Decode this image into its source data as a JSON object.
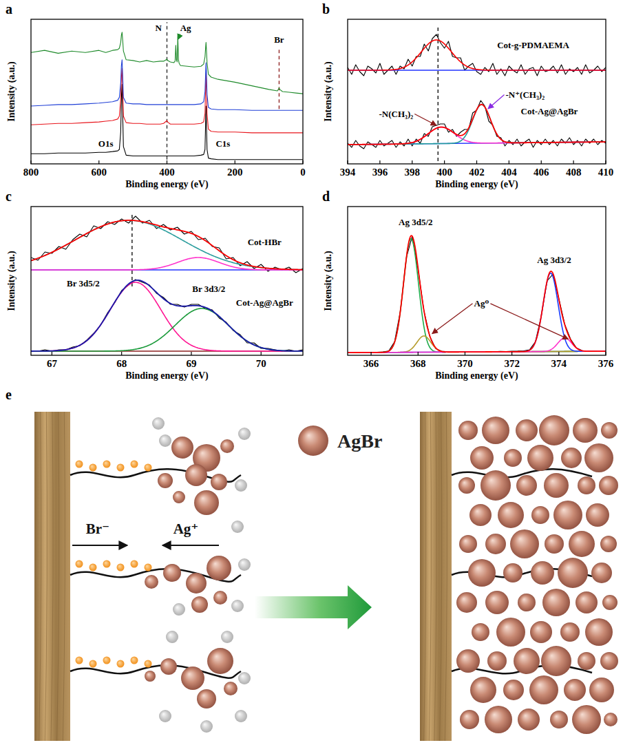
{
  "chart_data": [
    {
      "panel": "a",
      "type": "line",
      "xlabel": "Binding energy (eV)",
      "ylabel": "Intensity (a.u.)",
      "xlim": [
        800,
        0
      ],
      "xticks": [
        800,
        600,
        400,
        200,
        0
      ],
      "ylim": [
        0,
        100
      ],
      "tick_labels": "x",
      "x": [
        800,
        760,
        720,
        680,
        640,
        600,
        580,
        560,
        545,
        540,
        536,
        534,
        532,
        530,
        528,
        520,
        500,
        480,
        460,
        440,
        420,
        410,
        402,
        400,
        398,
        390,
        380,
        376,
        374,
        372,
        370,
        368,
        366,
        364,
        360,
        340,
        320,
        300,
        292,
        288,
        286,
        285,
        284,
        282,
        278,
        270,
        250,
        200,
        150,
        100,
        75,
        70,
        68,
        60,
        40,
        20,
        0
      ],
      "series": [
        {
          "color": "#000000",
          "values": [
            7,
            7,
            7.5,
            7.5,
            7.5,
            8,
            8,
            8.5,
            9,
            10,
            22,
            46,
            55,
            32,
            12,
            6,
            5.5,
            5.5,
            5.5,
            5.5,
            5.5,
            5.5,
            5.5,
            5.5,
            5.5,
            5.5,
            5.5,
            5.5,
            5.5,
            5.5,
            5.5,
            5.5,
            5.5,
            5.5,
            5.5,
            5.5,
            5.5,
            6,
            6.5,
            10,
            30,
            40,
            30,
            10,
            4,
            3.5,
            3,
            3,
            3,
            3,
            3,
            3,
            3,
            3,
            3,
            3,
            3
          ]
        },
        {
          "color": "#e8141b",
          "values": [
            27,
            27.5,
            28,
            28,
            28.5,
            29,
            29.5,
            30,
            31,
            33,
            45,
            60,
            66,
            50,
            33,
            28.5,
            28,
            28,
            27.5,
            27.5,
            27.5,
            28,
            29.5,
            30,
            29,
            27.5,
            27.5,
            27.5,
            27.5,
            27.5,
            27.5,
            27.5,
            27.5,
            27.5,
            27.5,
            27.5,
            27.5,
            28,
            29,
            35,
            55,
            63,
            55,
            35,
            24,
            22.5,
            22,
            22,
            21.5,
            21.5,
            21.5,
            21.5,
            21.5,
            21.5,
            21.5,
            21.5,
            21.5
          ]
        },
        {
          "color": "#1f3fd6",
          "values": [
            40,
            40.5,
            41,
            41,
            41.5,
            42,
            42.5,
            43,
            44,
            46,
            56,
            68,
            72,
            60,
            46,
            42,
            41.5,
            41.5,
            41,
            41,
            41,
            41,
            41,
            41,
            41,
            41,
            41,
            41,
            41,
            41,
            41,
            41,
            41,
            41,
            41,
            41,
            41,
            41.5,
            43,
            50,
            64,
            70,
            64,
            48,
            39,
            38,
            37.5,
            37.5,
            37,
            37,
            37,
            37,
            37,
            37,
            37,
            37,
            37
          ]
        },
        {
          "color": "#1e8a2a",
          "values": [
            77,
            78.5,
            76.5,
            78,
            77,
            78.5,
            77,
            78.5,
            79,
            80,
            84,
            89,
            91,
            85,
            78,
            72,
            71.5,
            70.5,
            71.5,
            70.5,
            71,
            71,
            72,
            72.5,
            71.5,
            70.5,
            70,
            71,
            82,
            72,
            70.5,
            88,
            72,
            69.5,
            68,
            67.5,
            67,
            67.5,
            69,
            74,
            81,
            84,
            80,
            70,
            62,
            60,
            58.5,
            56.5,
            54,
            51.5,
            50.5,
            52.5,
            51.5,
            50,
            49.5,
            49,
            48.5
          ]
        }
      ],
      "vlines": [
        {
          "x": 400,
          "y": [
            3,
            98
          ],
          "color": "#222222",
          "line_style": "dashed"
        },
        {
          "x": 70,
          "y": [
            38,
            80
          ],
          "color": "#8b1a1a",
          "line_style": "dashed"
        }
      ],
      "annotations": [
        {
          "text": "N",
          "x": 425,
          "y": 92
        },
        {
          "text": "Ag",
          "x": 345,
          "y": 92,
          "color": "#1e8a2a",
          "arrow_to": [
            [
              368,
              86
            ]
          ]
        },
        {
          "text": "Br",
          "x": 70,
          "y": 84
        },
        {
          "text": "O1s",
          "x": 580,
          "y": 12
        },
        {
          "text": "C1s",
          "x": 235,
          "y": 12
        }
      ]
    },
    {
      "panel": "b",
      "type": "line",
      "xlabel": "Binding energy (eV)",
      "ylabel": "Intensity (a.u.)",
      "xlim": [
        394,
        410
      ],
      "xticks": [
        394,
        396,
        398,
        400,
        402,
        404,
        406,
        408,
        410
      ],
      "ylim": [
        0,
        105
      ],
      "tick_labels": "x",
      "x": [
        394,
        394.25,
        394.5,
        394.75,
        395,
        395.25,
        395.5,
        395.75,
        396,
        396.25,
        396.5,
        396.75,
        397,
        397.25,
        397.5,
        397.75,
        398,
        398.25,
        398.5,
        398.75,
        399,
        399.25,
        399.5,
        399.75,
        400,
        400.25,
        400.5,
        400.75,
        401,
        401.25,
        401.5,
        401.75,
        402,
        402.25,
        402.5,
        402.75,
        403,
        403.25,
        403.5,
        403.75,
        404,
        404.25,
        404.5,
        404.75,
        405,
        405.25,
        405.5,
        405.75,
        406,
        406.25,
        406.5,
        406.75,
        407,
        407.25,
        407.5,
        407.75,
        408,
        408.25,
        408.5,
        408.75,
        409,
        409.25,
        409.5,
        409.75,
        410
      ],
      "series": [
        {
          "color": "#000000",
          "values": [
            70,
            65,
            72,
            67,
            64,
            71,
            69,
            66,
            73,
            65,
            68,
            71,
            65,
            71,
            69,
            76,
            71,
            78,
            78,
            87,
            82,
            91,
            94,
            88,
            84,
            89,
            78,
            77,
            77,
            68,
            71,
            73,
            67,
            65,
            70,
            67,
            73,
            65,
            69,
            64,
            71,
            68,
            66,
            72,
            65,
            69,
            70,
            64,
            71,
            67,
            68,
            71,
            66,
            72,
            65,
            69,
            67,
            70,
            65,
            72,
            66,
            68,
            71,
            67,
            70
          ],
          "fit": {
            "baseline": [
              68,
              68
            ],
            "baseline_color": "#2233ff",
            "components": [
              {
                "center": 399.5,
                "height": 22,
                "fwhm": 2.2,
                "color": "#ff0000"
              }
            ]
          }
        },
        {
          "color": "#000000",
          "values": [
            15,
            12,
            17,
            13,
            11,
            16,
            14,
            12,
            17,
            13,
            15,
            17,
            12,
            16,
            13,
            18,
            13,
            18,
            15,
            22,
            20,
            27,
            28,
            29,
            29,
            23,
            25,
            20,
            23,
            25,
            25,
            37,
            39,
            46,
            42,
            31,
            28,
            20,
            19,
            13,
            17,
            14,
            18,
            13,
            16,
            18,
            12,
            17,
            14,
            18,
            14,
            17,
            13,
            18,
            15,
            19,
            14,
            17,
            13,
            18,
            15,
            18,
            14,
            17,
            15
          ],
          "fit": {
            "baseline": [
              14,
              16
            ],
            "baseline_color": "#2233ff",
            "total_color": "#ff0000",
            "components": [
              {
                "center": 399.8,
                "height": 12,
                "fwhm": 1.9,
                "color": "#ff33cc"
              },
              {
                "center": 402.3,
                "height": 28,
                "fwhm": 1.3,
                "color": "#1f9a9a"
              }
            ]
          }
        }
      ],
      "vlines": [
        {
          "x": 399.6,
          "y": [
            2,
            100
          ],
          "color": "#000000",
          "line_style": "dashed"
        }
      ],
      "annotations": [
        {
          "text": "Cot-g-PDMAEMA",
          "x": 405.5,
          "y": 84
        },
        {
          "text": "Cot-Ag@AgBr",
          "x": 406.5,
          "y": 36
        },
        {
          "text": "-N(CH₃)₂",
          "x": 397,
          "y": 34,
          "color": "#8b1a1a",
          "arrow_to": [
            [
              399.5,
              28
            ]
          ]
        },
        {
          "text": "-N⁺(CH₃)₂",
          "x": 405,
          "y": 48,
          "color": "#8a2be2",
          "arrow_to": [
            [
              402.7,
              40
            ]
          ]
        }
      ]
    },
    {
      "panel": "c",
      "type": "line",
      "xlabel": "Binding energy (eV)",
      "ylabel": "Intensity (a.u.)",
      "xlim": [
        66.7,
        70.6
      ],
      "xticks": [
        67,
        68,
        69,
        70
      ],
      "ylim": [
        0,
        108
      ],
      "tick_labels": "x",
      "x": [
        66.7,
        66.8,
        66.9,
        67.0,
        67.1,
        67.2,
        67.3,
        67.4,
        67.5,
        67.6,
        67.7,
        67.8,
        67.9,
        68.0,
        68.1,
        68.2,
        68.3,
        68.4,
        68.5,
        68.6,
        68.7,
        68.8,
        68.9,
        69.0,
        69.1,
        69.2,
        69.3,
        69.4,
        69.5,
        69.6,
        69.7,
        69.8,
        69.9,
        70.0,
        70.1,
        70.2,
        70.3,
        70.4,
        70.5,
        70.6
      ],
      "series": [
        {
          "color": "#000000",
          "values": [
            71,
            69,
            75,
            74,
            79,
            77,
            84,
            88,
            86,
            94,
            92,
            97,
            95,
            99,
            96,
            101,
            96,
            98,
            92,
            95,
            91,
            93,
            88,
            90,
            84,
            85,
            79,
            78,
            70,
            71,
            65,
            68,
            63,
            66,
            61,
            64,
            62,
            64,
            60,
            63
          ],
          "fit": {
            "baseline": [
              62,
              62
            ],
            "baseline_color": "#2233ff",
            "total_color": "#ff0000",
            "components": [
              {
                "center": 68.1,
                "height": 36,
                "fwhm": 1.8,
                "color": "#2a9d9d"
              },
              {
                "center": 69.1,
                "height": 9,
                "fwhm": 0.7,
                "color": "#ff33cc"
              }
            ]
          }
        },
        {
          "color": "#000000",
          "values": [
            3,
            3,
            4,
            3,
            4,
            4,
            6,
            7,
            11,
            16,
            22,
            31,
            38,
            47,
            51,
            55,
            53,
            51,
            45,
            42,
            37,
            37,
            35,
            37,
            37,
            34,
            33,
            27,
            24,
            18,
            15,
            9,
            9,
            5,
            5,
            4,
            3,
            4,
            3,
            4
          ],
          "fit": {
            "baseline": [
              3,
              3
            ],
            "baseline_color": "#8b2020",
            "total_color": "#1a1aaa",
            "components": [
              {
                "center": 68.2,
                "height": 50,
                "fwhm": 0.85,
                "color": "#ff1493"
              },
              {
                "center": 69.15,
                "height": 31,
                "fwhm": 0.9,
                "color": "#1a9a3a"
              }
            ]
          }
        }
      ],
      "vlines": [
        {
          "x": 68.15,
          "y": [
            50,
            104
          ],
          "color": "#000000",
          "line_style": "dashed"
        }
      ],
      "annotations": [
        {
          "text": "Cot-HBr",
          "x": 70.05,
          "y": 80
        },
        {
          "text": "Cot-Ag@AgBr",
          "x": 70.05,
          "y": 36
        },
        {
          "text": "Br 3d5/2",
          "x": 67.45,
          "y": 50
        },
        {
          "text": "Br 3d3/2",
          "x": 69.25,
          "y": 46
        }
      ]
    },
    {
      "panel": "d",
      "type": "line",
      "xlabel": "Binding energy (eV)",
      "ylabel": "Intensity (a.u.)",
      "xlim": [
        365,
        376
      ],
      "xticks": [
        366,
        368,
        370,
        372,
        374,
        376
      ],
      "ylim": [
        0,
        110
      ],
      "tick_labels": "x",
      "x": [
        365,
        365.25,
        365.5,
        365.75,
        366,
        366.25,
        366.5,
        366.75,
        367,
        367.25,
        367.5,
        367.75,
        368,
        368.25,
        368.5,
        368.75,
        369,
        369.25,
        369.5,
        369.75,
        370,
        370.25,
        370.5,
        370.75,
        371,
        371.25,
        371.5,
        371.75,
        372,
        372.25,
        372.5,
        372.75,
        373,
        373.25,
        373.5,
        373.75,
        374,
        374.25,
        374.5,
        374.75,
        375,
        375.25,
        375.5,
        375.75,
        376
      ],
      "series": [
        {
          "color": "#000000",
          "values": [
            2.2,
            2.0,
            2.3,
            2.1,
            2.2,
            2.3,
            2.5,
            3.2,
            10,
            33,
            72,
            88,
            64,
            33,
            14,
            5,
            3,
            2.6,
            2.4,
            2.5,
            2.6,
            2.5,
            2.7,
            2.6,
            2.8,
            2.7,
            2.9,
            2.8,
            3.0,
            3.1,
            3.3,
            4,
            10,
            29,
            55,
            60,
            42,
            23,
            12,
            5.5,
            3.4,
            3.1,
            3.0,
            3.1,
            3.0
          ],
          "fit": {
            "baseline": [
              2,
              3
            ],
            "baseline_color": "#5b2c8a",
            "total_color": "#ff0000",
            "components": [
              {
                "center": 367.7,
                "height": 84,
                "fwhm": 0.75,
                "color": "#1faa4a"
              },
              {
                "center": 368.25,
                "height": 12,
                "fwhm": 0.7,
                "color": "#b59b2a"
              },
              {
                "center": 373.65,
                "height": 58,
                "fwhm": 0.75,
                "color": "#1a3cff"
              },
              {
                "center": 374.25,
                "height": 10,
                "fwhm": 0.7,
                "color": "#ff33cc"
              }
            ]
          }
        }
      ],
      "annotations": [
        {
          "text": "Ag 3d5/2",
          "x": 367.9,
          "y": 96
        },
        {
          "text": "Ag 3d3/2",
          "x": 373.8,
          "y": 68
        },
        {
          "text": "Ag⁰",
          "x": 370.7,
          "y": 36,
          "color": "#8b1a1a",
          "arrow_to": [
            [
              368.6,
              16
            ],
            [
              374.4,
              12
            ]
          ]
        }
      ]
    }
  ],
  "diagram": {
    "panel": "e",
    "key_label": "AgBr",
    "left_ion": "Br⁻",
    "right_ion": "Ag⁺"
  }
}
